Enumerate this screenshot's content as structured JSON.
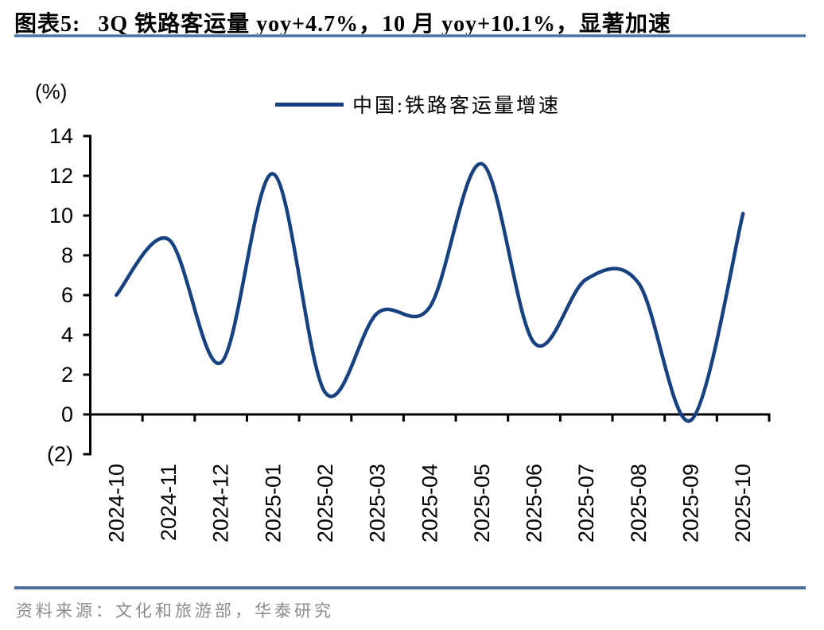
{
  "header": {
    "label": "图表5:",
    "title": "3Q 铁路客运量 yoy+4.7%，10 月 yoy+10.1%，显著加速"
  },
  "chart_data": {
    "type": "line",
    "unit_label": "(%)",
    "legend_position": "top-center",
    "grid": false,
    "smooth": true,
    "line_color": "#17417f",
    "categories": [
      "2024-10",
      "2024-11",
      "2024-12",
      "2025-01",
      "2025-02",
      "2025-03",
      "2025-04",
      "2025-05",
      "2025-06",
      "2025-07",
      "2025-08",
      "2025-09",
      "2025-10"
    ],
    "series": [
      {
        "name": "中国:铁路客运量增速",
        "values": [
          6.0,
          8.8,
          2.6,
          12.1,
          1.1,
          5.1,
          5.4,
          12.6,
          3.6,
          6.8,
          6.6,
          -0.3,
          10.1
        ]
      }
    ],
    "ylim": [
      -2,
      14
    ],
    "yticks": {
      "values": [
        14,
        12,
        10,
        8,
        6,
        4,
        2,
        0,
        -2
      ],
      "labels": [
        "14",
        "12",
        "10",
        "8",
        "6",
        "4",
        "2",
        "0",
        "(2)"
      ]
    }
  },
  "footer": {
    "source": "资料来源：文化和旅游部，华泰研究"
  },
  "colors": {
    "accent_line": "#17417f",
    "title_rule": "#45709f",
    "footer_rule": "#4e7096",
    "source_text": "#8c8c8c"
  }
}
